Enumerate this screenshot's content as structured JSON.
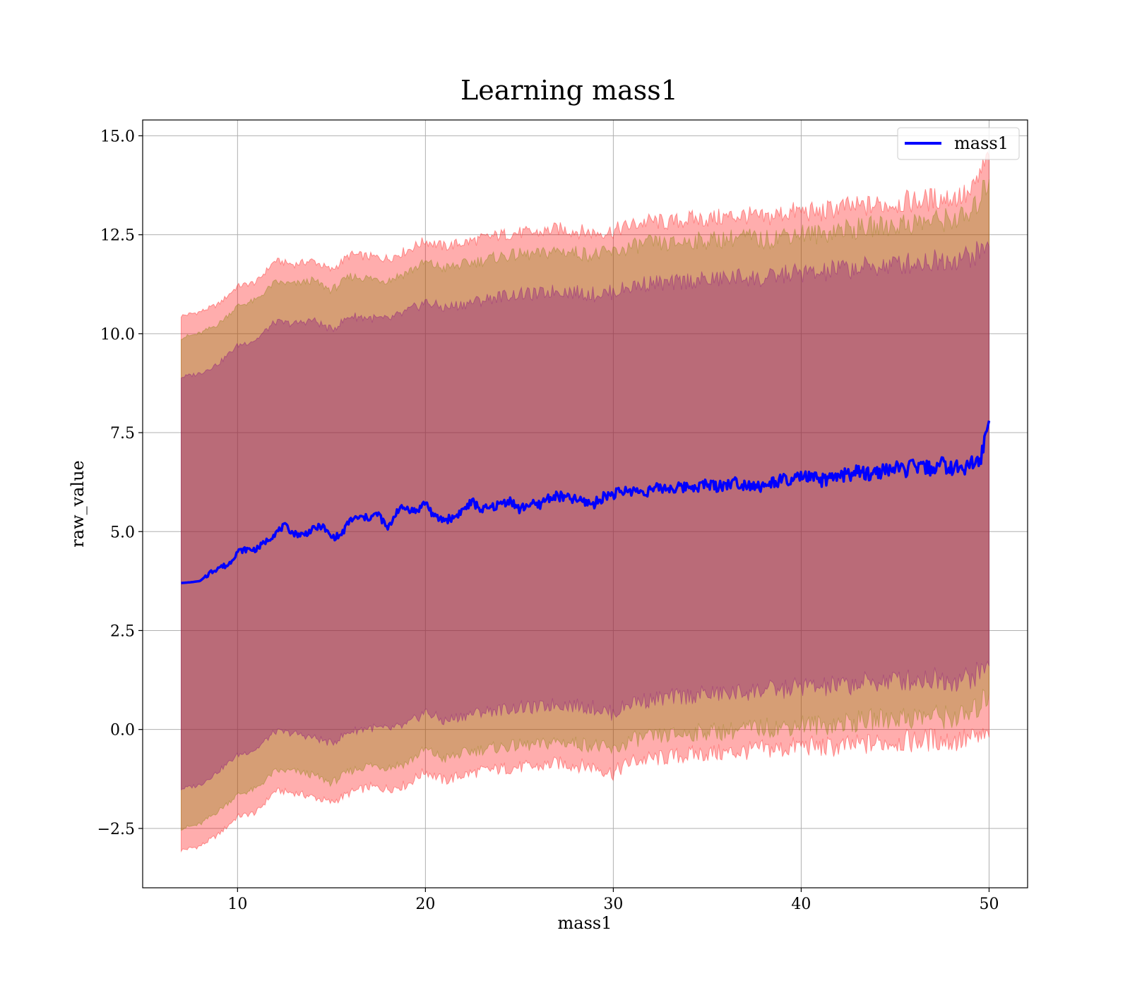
{
  "chart_data": {
    "type": "line",
    "title": "Learning mass1",
    "xlabel": "mass1",
    "ylabel": "raw_value",
    "xlim": [
      4.95,
      52.05
    ],
    "ylim": [
      -4.0,
      15.4
    ],
    "xticks": [
      10,
      20,
      30,
      40,
      50
    ],
    "xtick_labels": [
      "10",
      "20",
      "30",
      "40",
      "50"
    ],
    "yticks": [
      -2.5,
      0.0,
      2.5,
      5.0,
      7.5,
      10.0,
      12.5,
      15.0
    ],
    "ytick_labels": [
      "−2.5",
      "0.0",
      "2.5",
      "5.0",
      "7.5",
      "10.0",
      "12.5",
      "15.0"
    ],
    "grid": true,
    "legend_position": "top-right",
    "series": [
      {
        "name": "mass1",
        "color": "#0000ff",
        "x": [
          7.0,
          7.5,
          8.0,
          8.5,
          9.0,
          9.5,
          10.0,
          10.5,
          11.0,
          11.5,
          12.0,
          12.5,
          13.0,
          13.5,
          14.0,
          14.5,
          15.0,
          15.5,
          16.0,
          16.5,
          17.0,
          17.5,
          18.0,
          18.5,
          19.0,
          19.5,
          20.0,
          20.5,
          21.0,
          21.5,
          22.0,
          22.5,
          23.0,
          23.5,
          24.0,
          24.5,
          25.0,
          25.5,
          26.0,
          26.5,
          27.0,
          27.5,
          28.0,
          28.5,
          29.0,
          29.5,
          30.0,
          30.5,
          31.0,
          31.5,
          32.0,
          32.5,
          33.0,
          33.5,
          34.0,
          34.5,
          35.0,
          35.5,
          36.0,
          36.5,
          37.0,
          37.5,
          38.0,
          38.5,
          39.0,
          39.5,
          40.0,
          40.5,
          41.0,
          41.5,
          42.0,
          42.5,
          43.0,
          43.5,
          44.0,
          44.5,
          45.0,
          45.5,
          46.0,
          46.5,
          47.0,
          47.5,
          48.0,
          48.5,
          49.0,
          49.5,
          50.0
        ],
        "y": [
          3.7,
          3.72,
          3.75,
          3.95,
          4.1,
          4.15,
          4.5,
          4.55,
          4.55,
          4.75,
          4.95,
          5.15,
          4.95,
          4.92,
          5.05,
          5.15,
          4.85,
          4.9,
          5.3,
          5.35,
          5.35,
          5.45,
          5.05,
          5.55,
          5.6,
          5.5,
          5.75,
          5.35,
          5.3,
          5.35,
          5.55,
          5.75,
          5.55,
          5.6,
          5.7,
          5.8,
          5.55,
          5.7,
          5.65,
          5.85,
          5.9,
          5.85,
          5.8,
          5.75,
          5.7,
          5.9,
          5.95,
          6.0,
          6.05,
          6.0,
          6.05,
          6.1,
          6.1,
          6.1,
          6.15,
          6.15,
          6.2,
          6.15,
          6.2,
          6.25,
          6.2,
          6.2,
          6.1,
          6.25,
          6.3,
          6.25,
          6.4,
          6.35,
          6.3,
          6.3,
          6.4,
          6.45,
          6.5,
          6.45,
          6.5,
          6.55,
          6.6,
          6.55,
          6.65,
          6.6,
          6.6,
          6.7,
          6.6,
          6.6,
          6.7,
          6.75,
          7.8
        ]
      }
    ],
    "bands": [
      {
        "color": "#ff0000",
        "opacity": 0.32,
        "x": [
          7.0,
          8.0,
          9.0,
          10.0,
          11.0,
          12.0,
          13.0,
          14.0,
          15.0,
          16.0,
          17.0,
          18.0,
          19.0,
          20.0,
          21.0,
          22.0,
          23.0,
          24.0,
          25.0,
          26.0,
          27.0,
          28.0,
          29.0,
          30.0,
          31.0,
          32.0,
          33.0,
          34.0,
          35.0,
          36.0,
          37.0,
          38.0,
          39.0,
          40.0,
          41.0,
          42.0,
          43.0,
          44.0,
          45.0,
          46.0,
          47.0,
          48.0,
          49.0,
          50.0
        ],
        "lower": [
          -3.05,
          -2.95,
          -2.65,
          -2.2,
          -2.1,
          -1.55,
          -1.6,
          -1.7,
          -1.85,
          -1.6,
          -1.45,
          -1.5,
          -1.4,
          -1.05,
          -1.3,
          -1.15,
          -1.05,
          -1.0,
          -0.95,
          -0.95,
          -0.85,
          -0.9,
          -0.95,
          -1.1,
          -0.8,
          -0.75,
          -0.7,
          -0.65,
          -0.6,
          -0.6,
          -0.55,
          -0.5,
          -0.5,
          -0.4,
          -0.45,
          -0.45,
          -0.4,
          -0.35,
          -0.3,
          -0.3,
          -0.25,
          -0.3,
          -0.25,
          -0.2
        ],
        "upper": [
          10.45,
          10.55,
          10.75,
          11.2,
          11.3,
          11.85,
          11.75,
          11.85,
          11.6,
          12.0,
          11.95,
          11.9,
          12.1,
          12.35,
          12.2,
          12.3,
          12.4,
          12.5,
          12.55,
          12.55,
          12.65,
          12.6,
          12.55,
          12.6,
          12.75,
          12.85,
          12.8,
          12.9,
          12.9,
          12.95,
          13.0,
          12.9,
          13.05,
          13.1,
          13.05,
          13.2,
          13.2,
          13.25,
          13.3,
          13.35,
          13.4,
          13.45,
          13.5,
          14.5
        ]
      },
      {
        "color": "#808000",
        "opacity": 0.32,
        "x": [
          7.0,
          8.0,
          9.0,
          10.0,
          11.0,
          12.0,
          13.0,
          14.0,
          15.0,
          16.0,
          17.0,
          18.0,
          19.0,
          20.0,
          21.0,
          22.0,
          23.0,
          24.0,
          25.0,
          26.0,
          27.0,
          28.0,
          29.0,
          30.0,
          31.0,
          32.0,
          33.0,
          34.0,
          35.0,
          36.0,
          37.0,
          38.0,
          39.0,
          40.0,
          41.0,
          42.0,
          43.0,
          44.0,
          45.0,
          46.0,
          47.0,
          48.0,
          49.0,
          50.0
        ],
        "lower": [
          -2.5,
          -2.4,
          -2.05,
          -1.65,
          -1.5,
          -1.05,
          -1.05,
          -1.15,
          -1.35,
          -1.05,
          -0.9,
          -0.95,
          -0.85,
          -0.5,
          -0.75,
          -0.6,
          -0.5,
          -0.45,
          -0.4,
          -0.4,
          -0.3,
          -0.35,
          -0.4,
          -0.55,
          -0.25,
          -0.2,
          -0.15,
          -0.1,
          -0.05,
          -0.05,
          0.0,
          0.05,
          0.05,
          0.15,
          0.1,
          0.15,
          0.2,
          0.25,
          0.3,
          0.3,
          0.35,
          0.3,
          0.35,
          0.9
        ],
        "upper": [
          9.9,
          10.0,
          10.25,
          10.7,
          10.85,
          11.3,
          11.25,
          11.35,
          11.1,
          11.45,
          11.4,
          11.35,
          11.55,
          11.8,
          11.65,
          11.75,
          11.85,
          11.95,
          12.0,
          12.0,
          12.1,
          12.05,
          12.0,
          12.05,
          12.2,
          12.3,
          12.25,
          12.35,
          12.35,
          12.4,
          12.45,
          12.35,
          12.5,
          12.55,
          12.5,
          12.65,
          12.65,
          12.7,
          12.75,
          12.8,
          12.85,
          12.9,
          12.95,
          13.9
        ]
      },
      {
        "color": "#800080",
        "opacity": 0.32,
        "x": [
          7.0,
          8.0,
          9.0,
          10.0,
          11.0,
          12.0,
          13.0,
          14.0,
          15.0,
          16.0,
          17.0,
          18.0,
          19.0,
          20.0,
          21.0,
          22.0,
          23.0,
          24.0,
          25.0,
          26.0,
          27.0,
          28.0,
          29.0,
          30.0,
          31.0,
          32.0,
          33.0,
          34.0,
          35.0,
          36.0,
          37.0,
          38.0,
          39.0,
          40.0,
          41.0,
          42.0,
          43.0,
          44.0,
          45.0,
          46.0,
          47.0,
          48.0,
          49.0,
          50.0
        ],
        "lower": [
          -1.5,
          -1.4,
          -1.05,
          -0.65,
          -0.5,
          -0.05,
          -0.1,
          -0.2,
          -0.35,
          -0.05,
          0.05,
          0.0,
          0.1,
          0.45,
          0.2,
          0.35,
          0.45,
          0.5,
          0.55,
          0.55,
          0.65,
          0.6,
          0.55,
          0.4,
          0.7,
          0.75,
          0.8,
          0.85,
          0.9,
          0.9,
          0.95,
          1.0,
          1.0,
          1.1,
          1.05,
          1.1,
          1.15,
          1.2,
          1.25,
          1.25,
          1.3,
          1.25,
          1.3,
          1.6
        ],
        "upper": [
          8.9,
          9.0,
          9.25,
          9.7,
          9.85,
          10.3,
          10.25,
          10.35,
          10.1,
          10.45,
          10.4,
          10.35,
          10.55,
          10.8,
          10.65,
          10.75,
          10.85,
          10.95,
          11.0,
          11.0,
          11.1,
          11.05,
          11.0,
          11.05,
          11.2,
          11.3,
          11.25,
          11.35,
          11.35,
          11.4,
          11.45,
          11.35,
          11.5,
          11.55,
          11.5,
          11.65,
          11.65,
          11.7,
          11.75,
          11.8,
          11.85,
          11.9,
          11.95,
          12.2
        ]
      }
    ]
  }
}
